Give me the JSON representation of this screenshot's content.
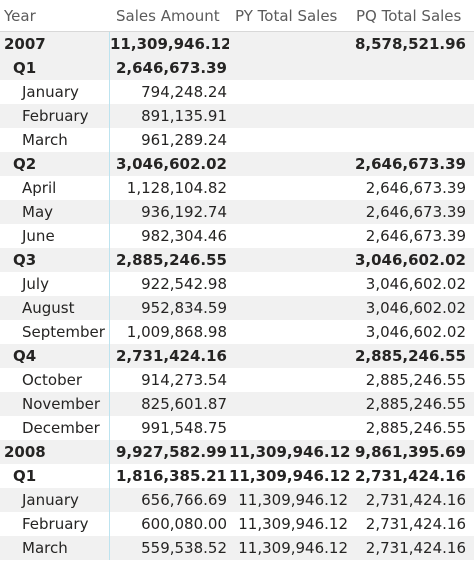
{
  "headers": [
    "Year",
    "Sales Amount",
    "PY Total Sales",
    "PQ Total Sales"
  ],
  "rows": [
    {
      "label": "2007",
      "level": 0,
      "bold": true,
      "shaded": true,
      "sales": "11,309,946.12",
      "py": "",
      "pq": "8,578,521.96"
    },
    {
      "label": "Q1",
      "level": 1,
      "bold": true,
      "shaded": true,
      "sales": "2,646,673.39",
      "py": "",
      "pq": ""
    },
    {
      "label": "January",
      "level": 2,
      "bold": false,
      "shaded": false,
      "sales": "794,248.24",
      "py": "",
      "pq": ""
    },
    {
      "label": "February",
      "level": 2,
      "bold": false,
      "shaded": true,
      "sales": "891,135.91",
      "py": "",
      "pq": ""
    },
    {
      "label": "March",
      "level": 2,
      "bold": false,
      "shaded": false,
      "sales": "961,289.24",
      "py": "",
      "pq": ""
    },
    {
      "label": "Q2",
      "level": 1,
      "bold": true,
      "shaded": true,
      "sales": "3,046,602.02",
      "py": "",
      "pq": "2,646,673.39"
    },
    {
      "label": "April",
      "level": 2,
      "bold": false,
      "shaded": false,
      "sales": "1,128,104.82",
      "py": "",
      "pq": "2,646,673.39"
    },
    {
      "label": "May",
      "level": 2,
      "bold": false,
      "shaded": true,
      "sales": "936,192.74",
      "py": "",
      "pq": "2,646,673.39"
    },
    {
      "label": "June",
      "level": 2,
      "bold": false,
      "shaded": false,
      "sales": "982,304.46",
      "py": "",
      "pq": "2,646,673.39"
    },
    {
      "label": "Q3",
      "level": 1,
      "bold": true,
      "shaded": true,
      "sales": "2,885,246.55",
      "py": "",
      "pq": "3,046,602.02"
    },
    {
      "label": "July",
      "level": 2,
      "bold": false,
      "shaded": false,
      "sales": "922,542.98",
      "py": "",
      "pq": "3,046,602.02"
    },
    {
      "label": "August",
      "level": 2,
      "bold": false,
      "shaded": true,
      "sales": "952,834.59",
      "py": "",
      "pq": "3,046,602.02"
    },
    {
      "label": "September",
      "level": 2,
      "bold": false,
      "shaded": false,
      "sales": "1,009,868.98",
      "py": "",
      "pq": "3,046,602.02"
    },
    {
      "label": "Q4",
      "level": 1,
      "bold": true,
      "shaded": true,
      "sales": "2,731,424.16",
      "py": "",
      "pq": "2,885,246.55"
    },
    {
      "label": "October",
      "level": 2,
      "bold": false,
      "shaded": false,
      "sales": "914,273.54",
      "py": "",
      "pq": "2,885,246.55"
    },
    {
      "label": "November",
      "level": 2,
      "bold": false,
      "shaded": true,
      "sales": "825,601.87",
      "py": "",
      "pq": "2,885,246.55"
    },
    {
      "label": "December",
      "level": 2,
      "bold": false,
      "shaded": false,
      "sales": "991,548.75",
      "py": "",
      "pq": "2,885,246.55"
    },
    {
      "label": "2008",
      "level": 0,
      "bold": true,
      "shaded": true,
      "sales": "9,927,582.99",
      "py": "11,309,946.12",
      "pq": "9,861,395.69"
    },
    {
      "label": "Q1",
      "level": 1,
      "bold": true,
      "shaded": false,
      "sales": "1,816,385.21",
      "py": "11,309,946.12",
      "pq": "2,731,424.16"
    },
    {
      "label": "January",
      "level": 2,
      "bold": false,
      "shaded": true,
      "sales": "656,766.69",
      "py": "11,309,946.12",
      "pq": "2,731,424.16"
    },
    {
      "label": "February",
      "level": 2,
      "bold": false,
      "shaded": false,
      "sales": "600,080.00",
      "py": "11,309,946.12",
      "pq": "2,731,424.16"
    },
    {
      "label": "March",
      "level": 2,
      "bold": false,
      "shaded": true,
      "sales": "559,538.52",
      "py": "11,309,946.12",
      "pq": "2,731,424.16"
    }
  ]
}
